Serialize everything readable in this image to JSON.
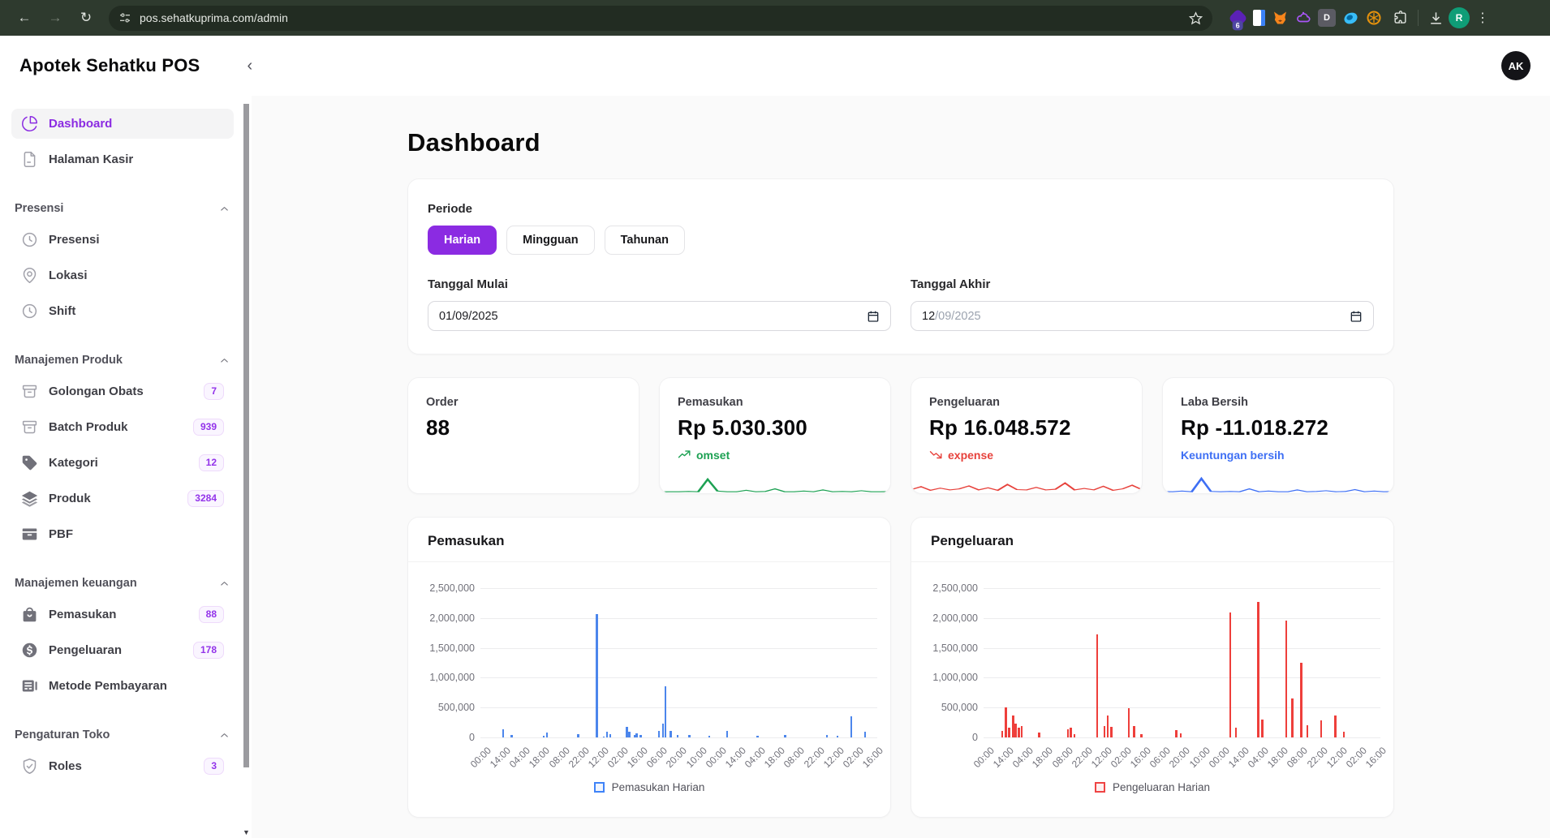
{
  "browser": {
    "url": "pos.sehatkuprima.com/admin",
    "profile_initial": "R",
    "extensions": [
      {
        "name": "wallet-extension-icon",
        "color": "#5b21b6",
        "shape": "diamond",
        "badge": "6"
      },
      {
        "name": "docs-extension-icon",
        "color": "#3b82f6",
        "shape": "doc"
      },
      {
        "name": "metamask-extension-icon",
        "color": "#f6851b",
        "shape": "fox"
      },
      {
        "name": "cloud-extension-icon",
        "color": "#a855f7",
        "shape": "cloud"
      },
      {
        "name": "d-letter-extension-icon",
        "color": "#5b5b63",
        "shape": "letter",
        "letter": "D"
      },
      {
        "name": "disc-extension-icon",
        "color": "#38bdf8",
        "shape": "disc"
      },
      {
        "name": "honeycomb-extension-icon",
        "color": "#e8930c",
        "shape": "honey"
      }
    ]
  },
  "header": {
    "app_title": "Apotek Sehatku POS",
    "avatar_initials": "AK"
  },
  "sidebar": {
    "top_items": [
      {
        "label": "Dashboard",
        "icon": "pie-chart",
        "active": true
      },
      {
        "label": "Halaman Kasir",
        "icon": "file"
      }
    ],
    "sections": [
      {
        "title": "Presensi",
        "items": [
          {
            "label": "Presensi",
            "icon": "clock"
          },
          {
            "label": "Lokasi",
            "icon": "map-pin"
          },
          {
            "label": "Shift",
            "icon": "clock"
          }
        ]
      },
      {
        "title": "Manajemen Produk",
        "items": [
          {
            "label": "Golongan Obats",
            "icon": "archive",
            "badge": "7"
          },
          {
            "label": "Batch Produk",
            "icon": "archive",
            "badge": "939"
          },
          {
            "label": "Kategori",
            "icon": "tag",
            "badge": "12"
          },
          {
            "label": "Produk",
            "icon": "layers",
            "badge": "3284"
          },
          {
            "label": "PBF",
            "icon": "inbox"
          }
        ]
      },
      {
        "title": "Manajemen keuangan",
        "items": [
          {
            "label": "Pemasukan",
            "icon": "shopping-bag",
            "badge": "88"
          },
          {
            "label": "Pengeluaran",
            "icon": "dollar-circle",
            "badge": "178"
          },
          {
            "label": "Metode Pembayaran",
            "icon": "bank"
          }
        ]
      },
      {
        "title": "Pengaturan Toko",
        "items": [
          {
            "label": "Roles",
            "icon": "shield-check",
            "badge": "3"
          }
        ]
      }
    ]
  },
  "main": {
    "page_title": "Dashboard",
    "filter": {
      "periode_label": "Periode",
      "period_options": [
        "Harian",
        "Mingguan",
        "Tahunan"
      ],
      "active_period": "Harian",
      "tanggal_mulai": {
        "label": "Tanggal Mulai",
        "value_parts": [
          {
            "text": "01/09/2025",
            "muted": false
          }
        ]
      },
      "tanggal_akhir": {
        "label": "Tanggal Akhir",
        "value_parts": [
          {
            "text": "12",
            "muted": false
          },
          {
            "text": "/09/2025",
            "muted": true
          }
        ]
      }
    },
    "stats": [
      {
        "label": "Order",
        "value": "88"
      },
      {
        "label": "Pemasukan",
        "value": "Rp 5.030.300",
        "sub": "omset",
        "trend": "up",
        "color": "#1da153",
        "sparkline": [
          4,
          4,
          4,
          5,
          4,
          38,
          6,
          4,
          4,
          8,
          4,
          5,
          12,
          4,
          4,
          6,
          4,
          9,
          4,
          5,
          4,
          7,
          4,
          4,
          5
        ]
      },
      {
        "label": "Pengeluaran",
        "value": "Rp 16.048.572",
        "sub": "expense",
        "trend": "down",
        "color": "#e7423c",
        "sparkline": [
          10,
          18,
          8,
          14,
          9,
          12,
          20,
          9,
          15,
          8,
          24,
          10,
          9,
          16,
          9,
          11,
          28,
          9,
          13,
          9,
          19,
          8,
          12,
          22,
          10
        ]
      },
      {
        "label": "Laba Bersih",
        "value": "Rp -11.018.272",
        "sub": "Keuntungan bersih",
        "trend": "none",
        "color": "#3e6ff4",
        "sparkline": [
          5,
          4,
          6,
          4,
          40,
          5,
          4,
          5,
          4,
          12,
          4,
          6,
          4,
          4,
          9,
          4,
          5,
          7,
          4,
          5,
          10,
          4,
          6,
          4,
          5
        ]
      }
    ]
  },
  "chart_data": [
    {
      "type": "bar",
      "title": "Pemasukan",
      "legend": "Pemasukan Harian",
      "bar_color": "#4c86ec",
      "legend_border": "#3f83f8",
      "legend_fill": "rgba(63,131,248,0.08)",
      "ylim": [
        0,
        2500000
      ],
      "ytick_values": [
        0,
        500000,
        1000000,
        1500000,
        2000000,
        2500000
      ],
      "ytick_labels": [
        "0",
        "500,000",
        "1,000,000",
        "1,500,000",
        "2,000,000",
        "2,500,000"
      ],
      "xlabels": [
        "00:00",
        "14:00",
        "04:00",
        "18:00",
        "08:00",
        "22:00",
        "12:00",
        "02:00",
        "16:00",
        "06:00",
        "20:00",
        "10:00",
        "00:00",
        "14:00",
        "04:00",
        "18:00",
        "08:00",
        "22:00",
        "12:00",
        "02:00",
        "16:00"
      ],
      "bars": [
        {
          "p": 0.045,
          "v": 140000
        },
        {
          "p": 0.067,
          "v": 35000
        },
        {
          "p": 0.149,
          "v": 30000
        },
        {
          "p": 0.157,
          "v": 75000
        },
        {
          "p": 0.237,
          "v": 60000
        },
        {
          "p": 0.284,
          "v": 2060000
        },
        {
          "p": 0.302,
          "v": 20000
        },
        {
          "p": 0.31,
          "v": 95000
        },
        {
          "p": 0.318,
          "v": 55000
        },
        {
          "p": 0.361,
          "v": 175000
        },
        {
          "p": 0.367,
          "v": 95000
        },
        {
          "p": 0.38,
          "v": 40000
        },
        {
          "p": 0.386,
          "v": 70000
        },
        {
          "p": 0.396,
          "v": 45000
        },
        {
          "p": 0.443,
          "v": 115000
        },
        {
          "p": 0.453,
          "v": 235000
        },
        {
          "p": 0.459,
          "v": 850000
        },
        {
          "p": 0.473,
          "v": 115000
        },
        {
          "p": 0.49,
          "v": 35000
        },
        {
          "p": 0.52,
          "v": 40000
        },
        {
          "p": 0.571,
          "v": 30000
        },
        {
          "p": 0.616,
          "v": 115000
        },
        {
          "p": 0.694,
          "v": 30000
        },
        {
          "p": 0.765,
          "v": 40000
        },
        {
          "p": 0.871,
          "v": 45000
        },
        {
          "p": 0.898,
          "v": 25000
        },
        {
          "p": 0.933,
          "v": 350000
        },
        {
          "p": 0.969,
          "v": 90000
        }
      ]
    },
    {
      "type": "bar",
      "title": "Pengeluaran",
      "legend": "Pengeluaran Harian",
      "bar_color": "#ee3f3b",
      "legend_border": "#ef4444",
      "legend_fill": "rgba(239,68,68,0.08)",
      "ylim": [
        0,
        2500000
      ],
      "ytick_values": [
        0,
        500000,
        1000000,
        1500000,
        2000000,
        2500000
      ],
      "ytick_labels": [
        "0",
        "500,000",
        "1,000,000",
        "1,500,000",
        "2,000,000",
        "2,500,000"
      ],
      "xlabels": [
        "00:00",
        "14:00",
        "04:00",
        "18:00",
        "08:00",
        "22:00",
        "12:00",
        "02:00",
        "16:00",
        "06:00",
        "20:00",
        "10:00",
        "00:00",
        "14:00",
        "04:00",
        "18:00",
        "08:00",
        "22:00",
        "12:00",
        "02:00",
        "16:00"
      ],
      "bars": [
        {
          "p": 0.035,
          "v": 110000
        },
        {
          "p": 0.044,
          "v": 500000
        },
        {
          "p": 0.052,
          "v": 170000
        },
        {
          "p": 0.063,
          "v": 365000
        },
        {
          "p": 0.069,
          "v": 230000
        },
        {
          "p": 0.077,
          "v": 165000
        },
        {
          "p": 0.085,
          "v": 185000
        },
        {
          "p": 0.129,
          "v": 80000
        },
        {
          "p": 0.202,
          "v": 130000
        },
        {
          "p": 0.21,
          "v": 160000
        },
        {
          "p": 0.219,
          "v": 60000
        },
        {
          "p": 0.277,
          "v": 1730000
        },
        {
          "p": 0.296,
          "v": 190000
        },
        {
          "p": 0.304,
          "v": 365000
        },
        {
          "p": 0.313,
          "v": 175000
        },
        {
          "p": 0.358,
          "v": 490000
        },
        {
          "p": 0.371,
          "v": 185000
        },
        {
          "p": 0.39,
          "v": 60000
        },
        {
          "p": 0.479,
          "v": 120000
        },
        {
          "p": 0.49,
          "v": 70000
        },
        {
          "p": 0.617,
          "v": 2090000
        },
        {
          "p": 0.631,
          "v": 160000
        },
        {
          "p": 0.688,
          "v": 2270000
        },
        {
          "p": 0.698,
          "v": 300000
        },
        {
          "p": 0.76,
          "v": 1950000
        },
        {
          "p": 0.775,
          "v": 650000
        },
        {
          "p": 0.798,
          "v": 1250000
        },
        {
          "p": 0.813,
          "v": 200000
        },
        {
          "p": 0.848,
          "v": 285000
        },
        {
          "p": 0.885,
          "v": 370000
        },
        {
          "p": 0.906,
          "v": 90000
        }
      ]
    }
  ]
}
